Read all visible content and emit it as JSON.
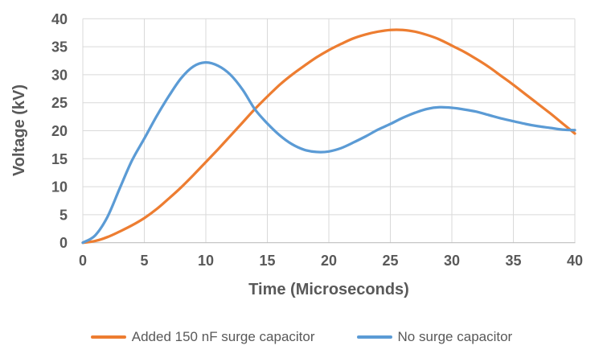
{
  "chart_data": {
    "type": "line",
    "title": "",
    "xlabel": "Time (Microseconds)",
    "ylabel": "Voltage (kV)",
    "xlim": [
      0,
      40
    ],
    "ylim": [
      0,
      40
    ],
    "xticks": [
      0,
      5,
      10,
      15,
      20,
      25,
      30,
      35,
      40
    ],
    "yticks": [
      0,
      5,
      10,
      15,
      20,
      25,
      30,
      35,
      40
    ],
    "grid": true,
    "legend_position": "bottom",
    "x": [
      0,
      1,
      2,
      3,
      4,
      5,
      6,
      7,
      8,
      9,
      10,
      11,
      12,
      13,
      14,
      15,
      16,
      17,
      18,
      19,
      20,
      21,
      22,
      23,
      24,
      25,
      26,
      27,
      28,
      29,
      30,
      31,
      32,
      33,
      34,
      35,
      36,
      37,
      38,
      39,
      40
    ],
    "series": [
      {
        "name": "Added 150 nF surge capacitor",
        "color": "#ED7D31",
        "values": [
          0,
          0.3,
          1.0,
          2.0,
          3.1,
          4.4,
          6.0,
          7.9,
          9.9,
          12.1,
          14.4,
          16.7,
          19.1,
          21.5,
          23.9,
          26.1,
          28.2,
          30.0,
          31.6,
          33.1,
          34.4,
          35.5,
          36.5,
          37.2,
          37.7,
          38.0,
          38.0,
          37.7,
          37.1,
          36.3,
          35.2,
          34.1,
          32.8,
          31.4,
          29.8,
          28.2,
          26.5,
          24.8,
          23.1,
          21.3,
          19.5
        ]
      },
      {
        "name": "No surge capacitor",
        "color": "#5B9BD5",
        "values": [
          0,
          1.3,
          4.6,
          9.7,
          14.7,
          18.6,
          22.6,
          26.2,
          29.4,
          31.5,
          32.2,
          31.6,
          30.0,
          27.3,
          23.8,
          21.3,
          19.2,
          17.6,
          16.6,
          16.2,
          16.3,
          16.9,
          17.9,
          19.0,
          20.2,
          21.2,
          22.3,
          23.2,
          23.9,
          24.2,
          24.1,
          23.8,
          23.4,
          22.8,
          22.2,
          21.7,
          21.2,
          20.8,
          20.5,
          20.2,
          20.1
        ]
      }
    ]
  },
  "colors": {
    "background": "#FFFFFF",
    "grid": "#D9D9D9",
    "axis_line": "#BFBFBF",
    "text": "#595959"
  }
}
